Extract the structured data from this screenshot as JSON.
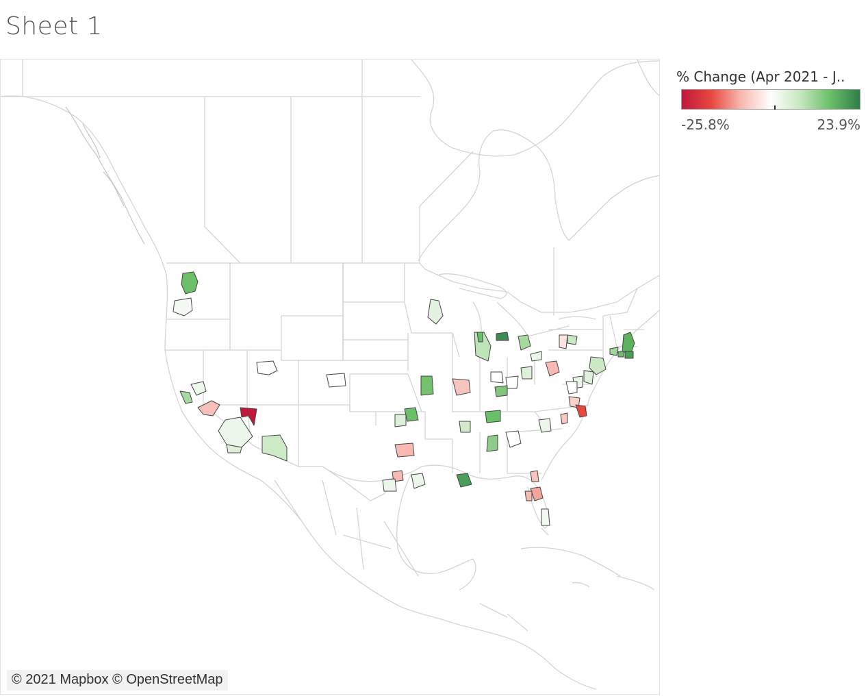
{
  "sheet": {
    "title": "Sheet 1"
  },
  "legend": {
    "title": "% Change (Apr 2021 - J..",
    "min_label": "-25.8%",
    "max_label": "23.9%",
    "min_value": -25.8,
    "max_value": 23.9,
    "marker_value": 0,
    "colors": [
      "#c0183d",
      "#e8483f",
      "#f7b8b0",
      "#ffffff",
      "#c6e6c0",
      "#6abf69",
      "#2f7e48"
    ]
  },
  "map": {
    "attribution": "© 2021 Mapbox © OpenStreetMap",
    "border_color": "#d6d6d6",
    "outline_color": "#444444"
  }
}
